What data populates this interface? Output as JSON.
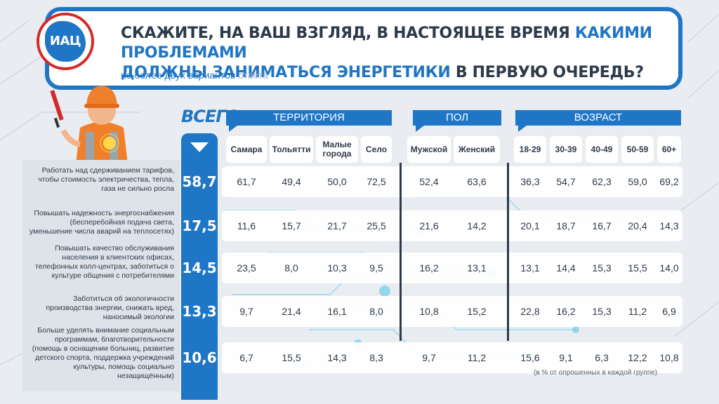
{
  "header": {
    "logo_text": "ИАЦ",
    "question_part1": "СКАЖИТЕ, НА ВАШ ВЗГЛЯД, В НАСТОЯЩЕЕ ВРЕМЯ ",
    "question_hl1": "КАКИМИ ПРОБЛЕМАМИ",
    "question_line2_hl": "ДОЛЖНЫ ЗАНИМАТЬСЯ ЭНЕРГЕТИКИ",
    "question_line2_rest": " В ПЕРВУЮ ОЧЕРЕДЬ?",
    "subtitle": "не более двух вариантов",
    "subtitle_muted": " ответа"
  },
  "vsego_label": "ВСЕГО",
  "note": "(в % от опрошенных в каждой группе)",
  "colors": {
    "accent": "#1f76c6",
    "text": "#2d3a4a",
    "logo_ring": "#d52a2a"
  },
  "chart_data": {
    "type": "table",
    "groups": [
      "ТЕРРИТОРИЯ",
      "ПОЛ",
      "ВОЗРАСТ"
    ],
    "columns": [
      "Самара",
      "Тольятти",
      "Малые города",
      "Село",
      "Мужской",
      "Женский",
      "18-29",
      "30-39",
      "40-49",
      "50-59",
      "60+"
    ],
    "rows": [
      {
        "label": "Работать над сдерживанием тарифов, чтобы стоимость электричества, тепла, газа не сильно росла",
        "total": "58,7",
        "values": [
          "61,7",
          "49,4",
          "50,0",
          "72,5",
          "52,4",
          "63,6",
          "36,3",
          "54,7",
          "62,3",
          "59,0",
          "69,2"
        ]
      },
      {
        "label": "Повышать надежность энергоснабжения (бесперебойная подача света, уменьшение числа аварий на теплосетях)",
        "total": "17,5",
        "values": [
          "11,6",
          "15,7",
          "21,7",
          "25,5",
          "21,6",
          "14,2",
          "20,1",
          "18,7",
          "16,7",
          "20,4",
          "14,3"
        ]
      },
      {
        "label": "Повышать качество обслуживания населения в клиентских офисах, телефонных колл-центрах, заботиться о культуре общения с потребителями",
        "total": "14,5",
        "values": [
          "23,5",
          "8,0",
          "10,3",
          "9,5",
          "16,2",
          "13,1",
          "13,1",
          "14,4",
          "15,3",
          "15,5",
          "14,0"
        ]
      },
      {
        "label": "Заботиться об экологичности производства энергии, снижать вред, наносимый экологии",
        "total": "13,3",
        "values": [
          "9,7",
          "21,4",
          "16,1",
          "8,0",
          "10,8",
          "15,2",
          "22,8",
          "16,2",
          "15,3",
          "11,2",
          "6,9"
        ]
      },
      {
        "label": "Больше уделять внимание социальным программам, благотворительности (помощь в оснащении больниц, развитие детского спорта, поддержка учреждений культуры, помощь социально незащищённым)",
        "total": "10,6",
        "values": [
          "6,7",
          "15,5",
          "14,3",
          "8,3",
          "9,7",
          "11,2",
          "15,6",
          "9,1",
          "6,3",
          "12,2",
          "10,8"
        ]
      }
    ]
  }
}
